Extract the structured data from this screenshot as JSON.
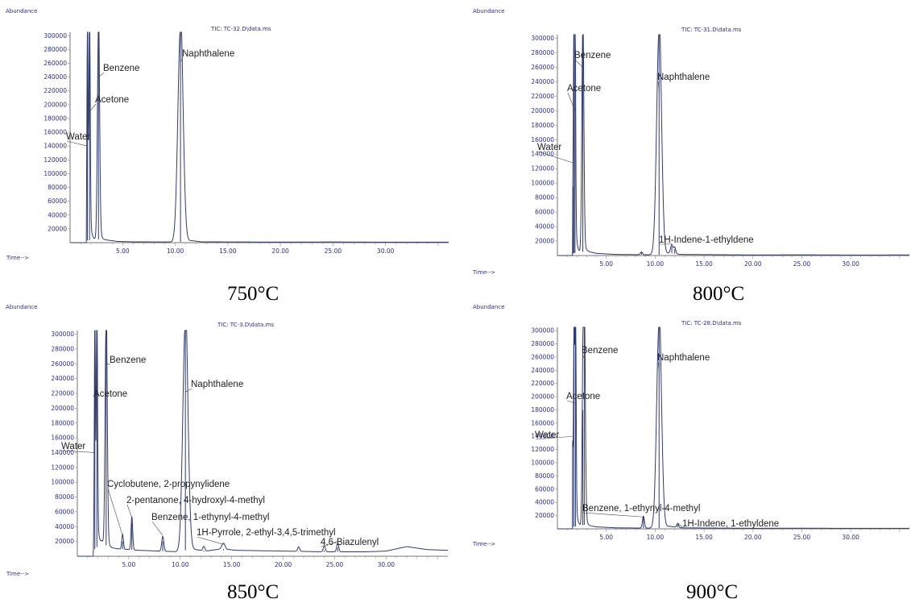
{
  "chart_data": [
    {
      "type": "line",
      "title": "TIC: TC-32.D\\data.ms",
      "caption": "750°C",
      "ylabel": "Abundance",
      "xlabel": "Time-->",
      "xlim": [
        0,
        36
      ],
      "ylim": [
        0,
        305000
      ],
      "yticks": [
        "300000",
        "280000",
        "260000",
        "240000",
        "220000",
        "200000",
        "180000",
        "160000",
        "140000",
        "120000",
        "100000",
        "80000",
        "60000",
        "40000",
        "20000"
      ],
      "xticks": [
        "5.00",
        "10.00",
        "15.00",
        "20.00",
        "25.00",
        "30.00"
      ],
      "baseline": [
        [
          0,
          0
        ],
        [
          1.6,
          3000
        ],
        [
          2.6,
          5000
        ],
        [
          3.4,
          4000
        ],
        [
          4.5,
          1800
        ],
        [
          6,
          1200
        ],
        [
          9,
          1000
        ],
        [
          10.4,
          900
        ],
        [
          11.5,
          3000
        ],
        [
          12.5,
          1200
        ],
        [
          20,
          800
        ],
        [
          25,
          1000
        ],
        [
          30,
          700
        ],
        [
          36,
          800
        ]
      ],
      "peaks": [
        {
          "x": 1.65,
          "height": 310000,
          "width": 0.05
        },
        {
          "x": 1.85,
          "height": 310000,
          "width": 0.06
        },
        {
          "x": 2.7,
          "height": 310000,
          "width": 0.1
        },
        {
          "x": 10.5,
          "height": 310000,
          "width": 0.25
        }
      ],
      "annotations": [
        {
          "label": "Water",
          "x": 1.65,
          "y": 140000
        },
        {
          "label": "Acetone",
          "x": 1.85,
          "y": 190000
        },
        {
          "label": "Benzene",
          "x": 2.7,
          "y": 240000
        },
        {
          "label": "Naphthalene",
          "x": 10.5,
          "y": 262000
        }
      ]
    },
    {
      "type": "line",
      "title": "TIC: TC-31.D\\data.ms",
      "caption": "800°C",
      "ylabel": "Abundance",
      "xlabel": "Time-->",
      "xlim": [
        0,
        36
      ],
      "ylim": [
        0,
        305000
      ],
      "yticks": [
        "300000",
        "280000",
        "260000",
        "240000",
        "220000",
        "200000",
        "180000",
        "160000",
        "140000",
        "120000",
        "100000",
        "80000",
        "60000",
        "40000",
        "20000"
      ],
      "xticks": [
        "5.00",
        "10.00",
        "15.00",
        "20.00",
        "25.00",
        "30.00"
      ],
      "baseline": [
        [
          0,
          0
        ],
        [
          1.6,
          3000
        ],
        [
          3,
          6000
        ],
        [
          4,
          3000
        ],
        [
          6,
          1500
        ],
        [
          8.5,
          1200
        ],
        [
          10.4,
          1000
        ],
        [
          11.5,
          3500
        ],
        [
          12.6,
          1500
        ],
        [
          20,
          800
        ],
        [
          25,
          1000
        ],
        [
          30,
          700
        ],
        [
          36,
          800
        ]
      ],
      "peaks": [
        {
          "x": 1.6,
          "height": 95000,
          "width": 0.05
        },
        {
          "x": 1.7,
          "height": 310000,
          "width": 0.05
        },
        {
          "x": 1.8,
          "height": 310000,
          "width": 0.06
        },
        {
          "x": 2.6,
          "height": 310000,
          "width": 0.1
        },
        {
          "x": 10.4,
          "height": 310000,
          "width": 0.25
        },
        {
          "x": 11.7,
          "height": 12000,
          "width": 0.12
        },
        {
          "x": 12.0,
          "height": 9000,
          "width": 0.1
        },
        {
          "x": 8.6,
          "height": 4000,
          "width": 0.1
        }
      ],
      "annotations": [
        {
          "label": "Water",
          "x": 1.6,
          "y": 128000
        },
        {
          "label": "Acetone",
          "x": 1.8,
          "y": 200000
        },
        {
          "label": "Benzene",
          "x": 2.6,
          "y": 260000
        },
        {
          "label": "Naphthalene",
          "x": 10.4,
          "y": 228000
        },
        {
          "label": "1H-Indene-1-ethyldene",
          "x": 11.7,
          "y": 16000
        }
      ]
    },
    {
      "type": "line",
      "title": "TIC: TC-3.D\\data.ms",
      "caption": "850°C",
      "ylabel": "Abundance",
      "xlabel": "Time-->",
      "xlim": [
        0,
        36
      ],
      "ylim": [
        0,
        305000
      ],
      "yticks": [
        "300000",
        "280000",
        "260000",
        "240000",
        "220000",
        "200000",
        "180000",
        "160000",
        "140000",
        "120000",
        "100000",
        "80000",
        "60000",
        "40000",
        "20000"
      ],
      "xticks": [
        "5.00",
        "10.00",
        "15.00",
        "20.00",
        "25.00",
        "30.00"
      ],
      "baseline": [
        [
          0,
          0
        ],
        [
          1.6,
          8000
        ],
        [
          2.4,
          20000
        ],
        [
          3,
          12000
        ],
        [
          4,
          10000
        ],
        [
          6,
          8000
        ],
        [
          8,
          7000
        ],
        [
          10,
          6000
        ],
        [
          11,
          10000
        ],
        [
          12.5,
          7000
        ],
        [
          14,
          10000
        ],
        [
          15.5,
          8000
        ],
        [
          20,
          7000
        ],
        [
          24,
          6000
        ],
        [
          28,
          6000
        ],
        [
          30,
          7000
        ],
        [
          32,
          13000
        ],
        [
          34,
          9000
        ],
        [
          36,
          8000
        ]
      ],
      "peaks": [
        {
          "x": 1.7,
          "height": 310000,
          "width": 0.05
        },
        {
          "x": 1.9,
          "height": 310000,
          "width": 0.06
        },
        {
          "x": 2.8,
          "height": 310000,
          "width": 0.1
        },
        {
          "x": 4.4,
          "height": 20000,
          "width": 0.08
        },
        {
          "x": 5.3,
          "height": 45000,
          "width": 0.08
        },
        {
          "x": 8.3,
          "height": 20000,
          "width": 0.1
        },
        {
          "x": 10.5,
          "height": 310000,
          "width": 0.25
        },
        {
          "x": 12.3,
          "height": 6000,
          "width": 0.1
        },
        {
          "x": 14.2,
          "height": 8000,
          "width": 0.15
        },
        {
          "x": 21.5,
          "height": 6000,
          "width": 0.1
        },
        {
          "x": 24.0,
          "height": 8000,
          "width": 0.1
        },
        {
          "x": 25.3,
          "height": 12000,
          "width": 0.1
        }
      ],
      "annotations": [
        {
          "label": "Water",
          "x": 1.7,
          "y": 140000
        },
        {
          "label": "Acetone",
          "x": 1.9,
          "y": 200000
        },
        {
          "label": "Benzene",
          "x": 2.8,
          "y": 260000
        },
        {
          "label": "Naphthalene",
          "x": 10.5,
          "y": 222000
        },
        {
          "label": "Cyclobutene, 2-propynylidene",
          "x": 4.4,
          "y": 28000
        },
        {
          "label": "2-pentanone, 4-hydroxyl-4-methyl",
          "x": 5.3,
          "y": 52000
        },
        {
          "label": "Benzene, 1-ethynyl-4-methyl",
          "x": 8.3,
          "y": 28000
        },
        {
          "label": "1H-Pyrrole, 2-ethyl-3,4,5-trimethyl",
          "x": 14.2,
          "y": 16000
        },
        {
          "label": "4,6-Biazulenyl",
          "x": 25.3,
          "y": 20000
        }
      ]
    },
    {
      "type": "line",
      "title": "TIC: TC-28.D\\data.ms",
      "caption": "900°C",
      "ylabel": "Abundance",
      "xlabel": "Time-->",
      "xlim": [
        0,
        36
      ],
      "ylim": [
        0,
        305000
      ],
      "yticks": [
        "300000",
        "280000",
        "260000",
        "240000",
        "220000",
        "200000",
        "180000",
        "160000",
        "140000",
        "120000",
        "100000",
        "80000",
        "60000",
        "40000",
        "20000"
      ],
      "xticks": [
        "5.00",
        "10.00",
        "15.00",
        "20.00",
        "25.00",
        "30.00"
      ],
      "baseline": [
        [
          0,
          0
        ],
        [
          1.6,
          3000
        ],
        [
          2.8,
          6000
        ],
        [
          4,
          3000
        ],
        [
          6,
          1500
        ],
        [
          8.5,
          1200
        ],
        [
          10.3,
          1000
        ],
        [
          11.4,
          4000
        ],
        [
          12.6,
          1500
        ],
        [
          20,
          800
        ],
        [
          25,
          1000
        ],
        [
          30,
          700
        ],
        [
          36,
          800
        ]
      ],
      "peaks": [
        {
          "x": 1.55,
          "height": 130000,
          "width": 0.05
        },
        {
          "x": 1.7,
          "height": 310000,
          "width": 0.05
        },
        {
          "x": 1.85,
          "height": 310000,
          "width": 0.06
        },
        {
          "x": 2.6,
          "height": 180000,
          "width": 0.08
        },
        {
          "x": 2.75,
          "height": 310000,
          "width": 0.1
        },
        {
          "x": 8.8,
          "height": 18000,
          "width": 0.1
        },
        {
          "x": 10.4,
          "height": 310000,
          "width": 0.25
        },
        {
          "x": 12.3,
          "height": 6000,
          "width": 0.1
        }
      ],
      "annotations": [
        {
          "label": "Water",
          "x": 1.55,
          "y": 140000
        },
        {
          "label": "Acetone",
          "x": 1.85,
          "y": 190000
        },
        {
          "label": "Benzene",
          "x": 2.75,
          "y": 258000
        },
        {
          "label": "Naphthalene",
          "x": 10.4,
          "y": 240000
        },
        {
          "label": "Benzene, 1-ethynyl-4-methyl",
          "x": 8.8,
          "y": 18000
        },
        {
          "label": "1H-Indene, 1-ethyldene",
          "x": 12.3,
          "y": 9000
        }
      ]
    }
  ]
}
